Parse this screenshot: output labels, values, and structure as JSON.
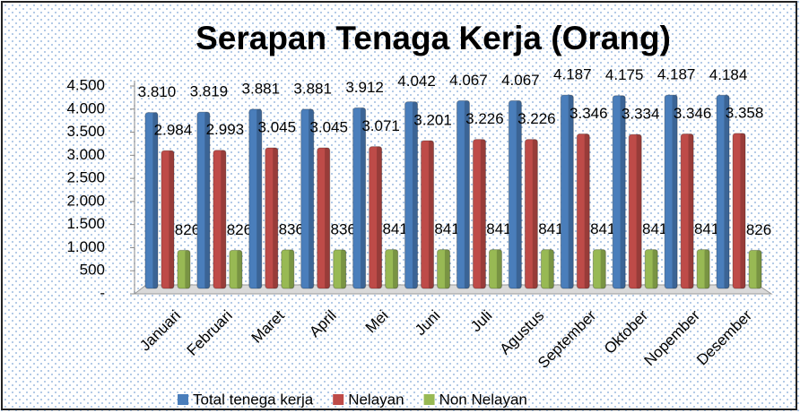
{
  "chart_data": {
    "type": "bar3d",
    "title": "Serapan Tenaga Kerja (Orang)",
    "categories": [
      "Januari",
      "Februari",
      "Maret",
      "April",
      "Mei",
      "Juni",
      "Juli",
      "Agustus",
      "September",
      "Oktober",
      "Nopember",
      "Desember"
    ],
    "series": [
      {
        "name": "Total tenega kerja",
        "color": "#4a7ebb",
        "values": [
          3810,
          3819,
          3881,
          3881,
          3912,
          4042,
          4067,
          4067,
          4187,
          4175,
          4187,
          4184
        ],
        "value_labels": [
          "3.810",
          "3.819",
          "3.881",
          "3.881",
          "3.912",
          "4.042",
          "4.067",
          "4.067",
          "4.187",
          "4.175",
          "4.187",
          "4.184"
        ]
      },
      {
        "name": "Nelayan",
        "color": "#be4b48",
        "values": [
          2984,
          2993,
          3045,
          3045,
          3071,
          3201,
          3226,
          3226,
          3346,
          3334,
          3346,
          3358
        ],
        "value_labels": [
          "2.984",
          "2.993",
          "3.045",
          "3.045",
          "3.071",
          "3.201",
          "3.226",
          "3.226",
          "3.346",
          "3.334",
          "3.346",
          "3.358"
        ]
      },
      {
        "name": "Non Nelayan",
        "color": "#98b954",
        "values": [
          826,
          826,
          836,
          836,
          841,
          841,
          841,
          841,
          841,
          841,
          841,
          826
        ]
      }
    ],
    "ylim": [
      0,
      4500
    ],
    "yticks": [
      {
        "value": 0,
        "label": "-"
      },
      500,
      {
        "value": 1000,
        "label": "1.000"
      },
      {
        "value": 1500,
        "label": "1.500"
      },
      {
        "value": 2000,
        "label": "2.000"
      },
      {
        "value": 2500,
        "label": "2.500"
      },
      {
        "value": 3000,
        "label": "3.000"
      },
      {
        "value": 3500,
        "label": "3.500"
      },
      {
        "value": 4000,
        "label": "4.000"
      },
      {
        "value": 4500,
        "label": "4.500"
      }
    ],
    "legend": "bottom"
  }
}
